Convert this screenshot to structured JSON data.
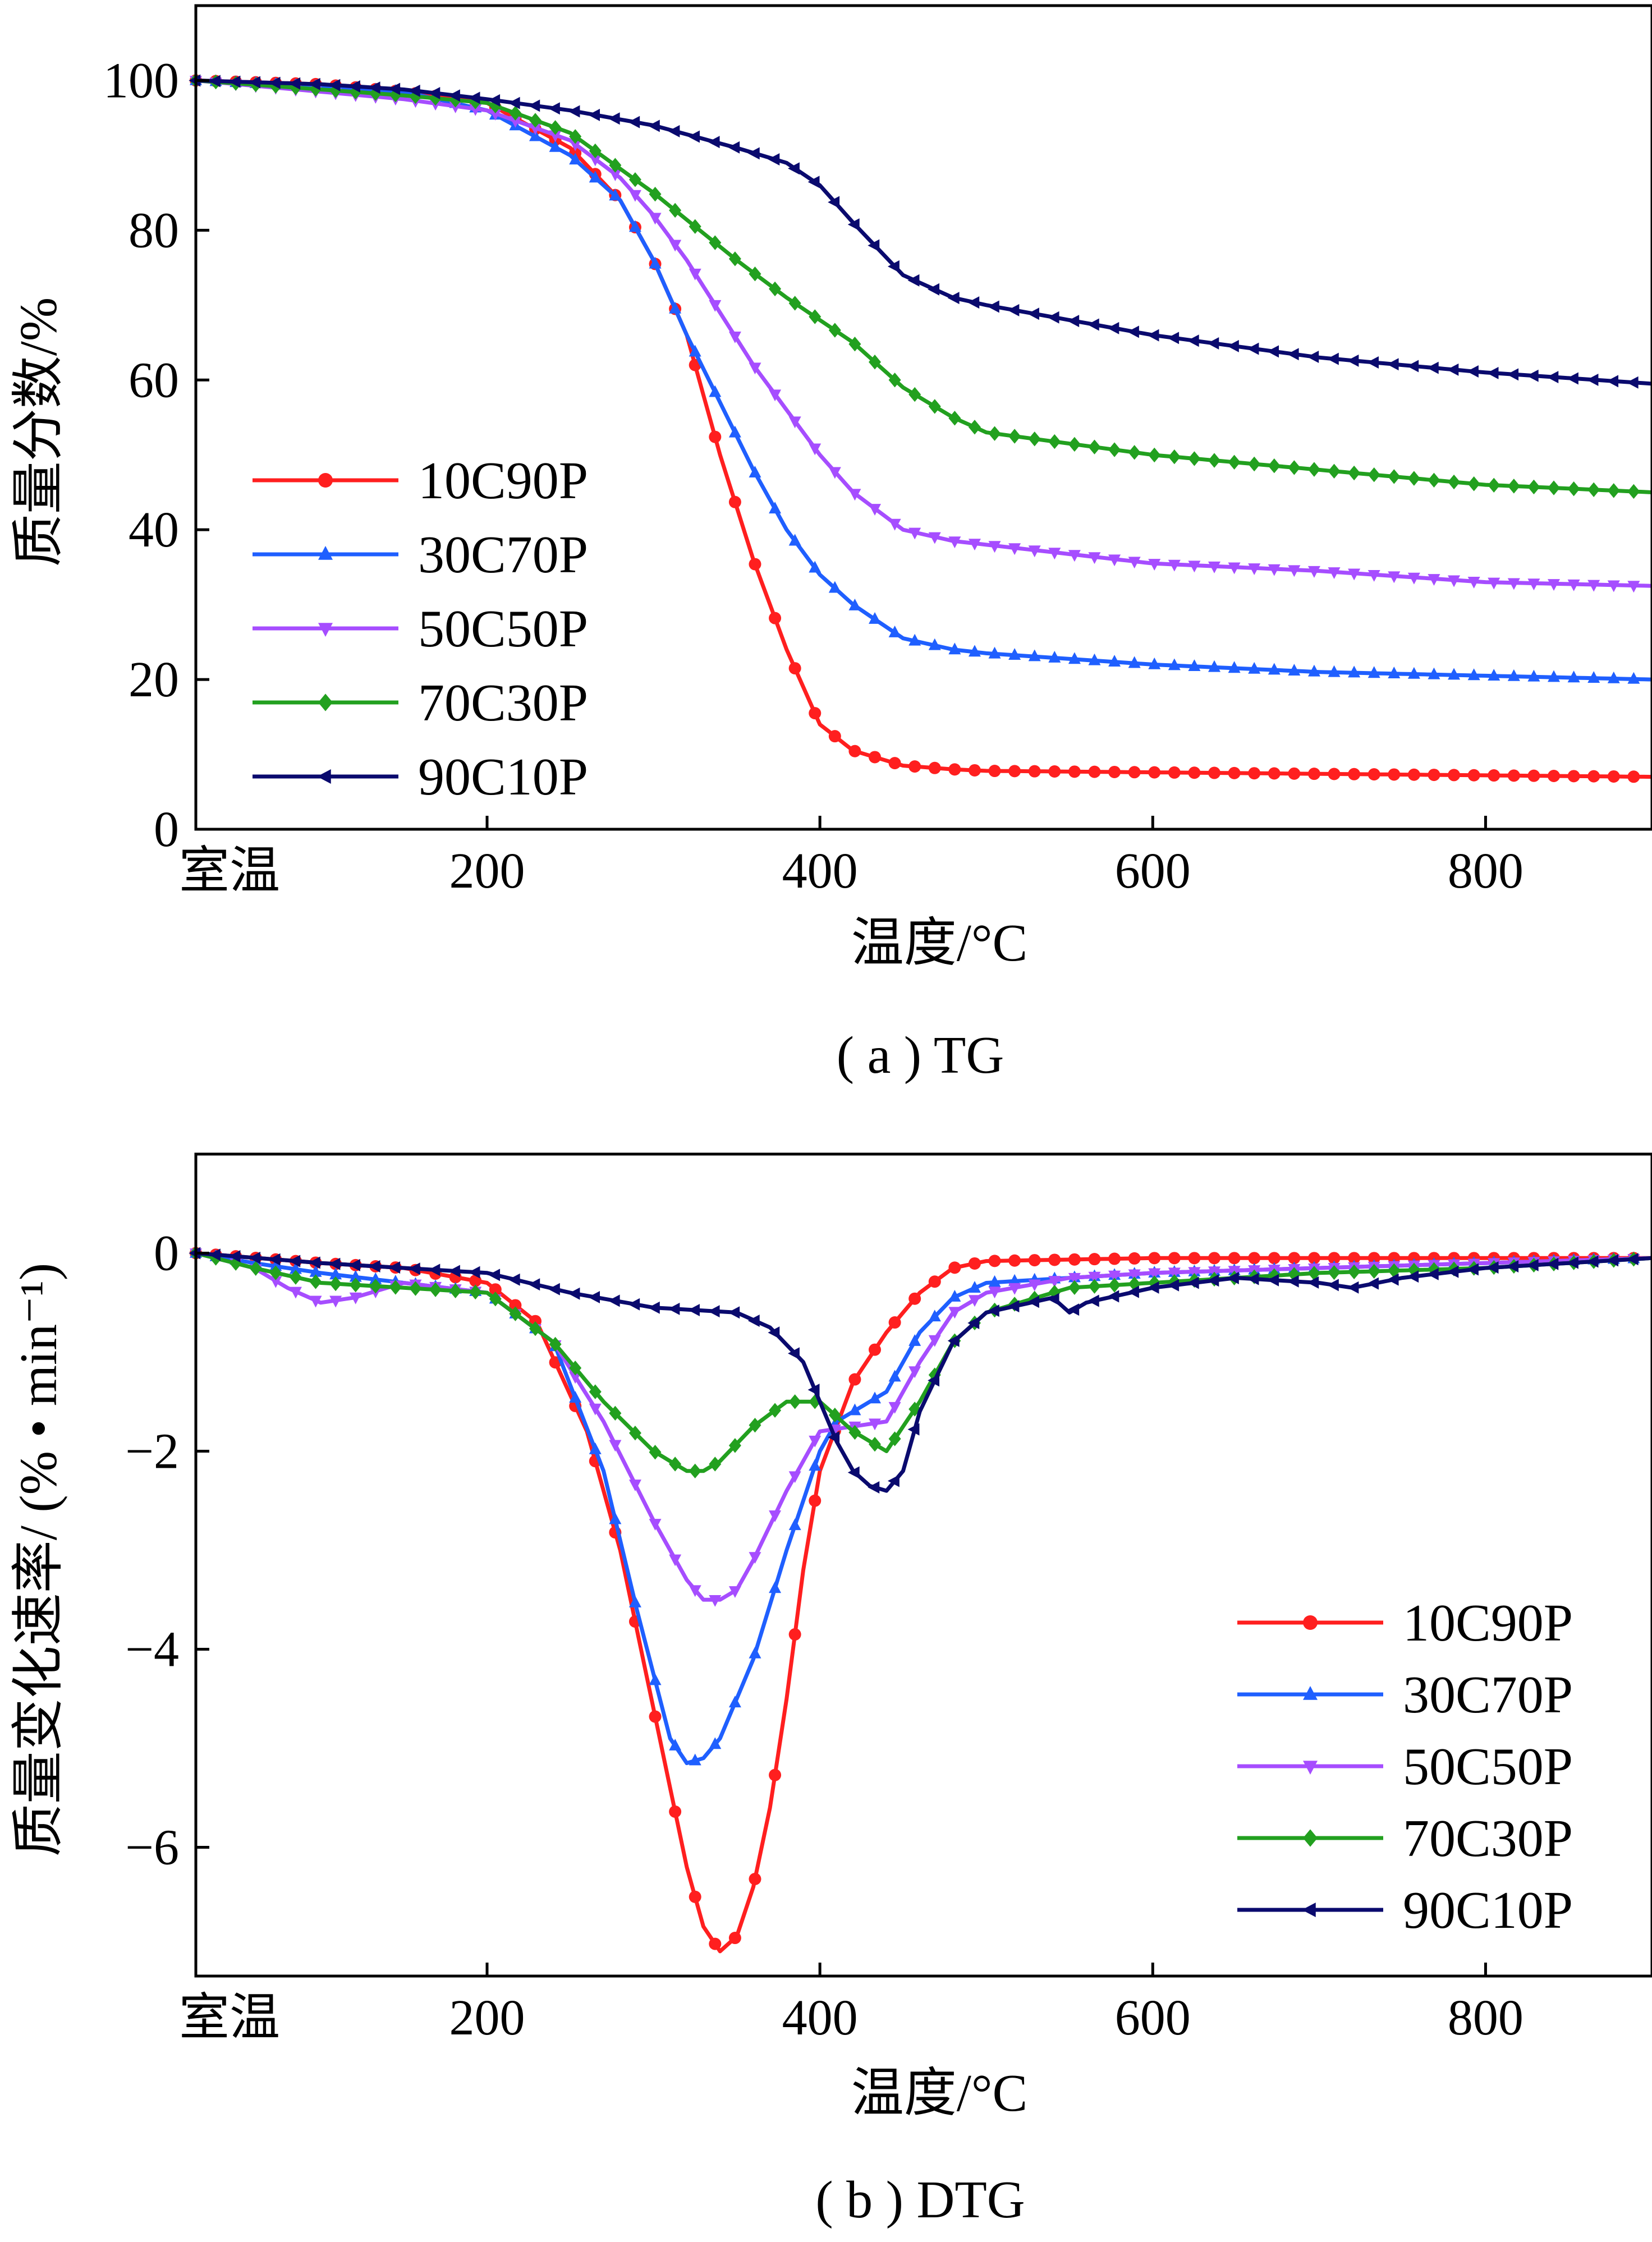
{
  "figure": {
    "caption_a": "( a ) TG",
    "caption_b": "( b ) DTG"
  },
  "colors": {
    "10C90P": "#ff1f1f",
    "30C70P": "#1f5fff",
    "50C50P": "#a64dff",
    "70C30P": "#22a01f",
    "90C10P": "#0a0a6e"
  },
  "markers": {
    "10C90P": "circle",
    "30C70P": "triangle-up",
    "50C50P": "triangle-down",
    "70C30P": "diamond",
    "90C10P": "triangle-left"
  },
  "chart_data": [
    {
      "id": "tg",
      "type": "line",
      "title": "",
      "xlabel": "温度/°C",
      "ylabel": "质量分数/%",
      "xlim": [
        25,
        900
      ],
      "ylim": [
        0,
        110
      ],
      "xticks": [
        25,
        200,
        400,
        600,
        800
      ],
      "xticklabels": [
        "室温",
        "200",
        "400",
        "600",
        "800"
      ],
      "yticks": [
        0,
        20,
        40,
        60,
        80,
        100
      ],
      "yticklabels": [
        "0",
        "20",
        "40",
        "60",
        "80",
        "100"
      ],
      "legend_position": "center-left",
      "grid": false,
      "series": [
        {
          "name": "10C90P",
          "x": [
            25,
            100,
            150,
            200,
            250,
            280,
            300,
            320,
            340,
            360,
            380,
            400,
            420,
            450,
            480,
            500,
            600,
            700,
            800,
            900
          ],
          "y": [
            100,
            99.5,
            98.5,
            97,
            91,
            84,
            76,
            66,
            50,
            36,
            24,
            14,
            10.5,
            8.5,
            8,
            7.8,
            7.6,
            7.4,
            7.2,
            7.0
          ]
        },
        {
          "name": "30C70P",
          "x": [
            25,
            100,
            150,
            200,
            250,
            280,
            300,
            320,
            340,
            360,
            380,
            400,
            420,
            450,
            480,
            500,
            600,
            700,
            800,
            900
          ],
          "y": [
            100,
            99.2,
            98.5,
            96,
            90,
            84,
            76,
            66,
            57,
            48,
            40,
            34,
            30,
            25.5,
            24,
            23.5,
            22,
            21,
            20.5,
            20
          ]
        },
        {
          "name": "50C50P",
          "x": [
            25,
            100,
            150,
            200,
            250,
            280,
            300,
            320,
            340,
            360,
            380,
            400,
            420,
            450,
            480,
            500,
            600,
            700,
            800,
            900
          ],
          "y": [
            100,
            98.5,
            97.5,
            96,
            92,
            87,
            82,
            76,
            69,
            62,
            56,
            50,
            45,
            40,
            38.5,
            38,
            35.5,
            34.5,
            33,
            32.5
          ]
        },
        {
          "name": "70C30P",
          "x": [
            25,
            100,
            150,
            200,
            250,
            300,
            350,
            380,
            400,
            420,
            450,
            480,
            500,
            600,
            700,
            800,
            900
          ],
          "y": [
            100,
            98.8,
            98,
            97,
            93,
            85,
            76,
            71,
            68,
            65,
            59,
            55,
            53,
            50,
            48,
            46,
            45
          ]
        },
        {
          "name": "90C10P",
          "x": [
            25,
            100,
            150,
            200,
            250,
            300,
            350,
            380,
            400,
            420,
            450,
            480,
            500,
            600,
            700,
            800,
            900
          ],
          "y": [
            100,
            99.5,
            98.8,
            97.5,
            96,
            94,
            91,
            89,
            86,
            81,
            74,
            71,
            70,
            66,
            63,
            61,
            59.5
          ]
        }
      ]
    },
    {
      "id": "dtg",
      "type": "line",
      "title": "",
      "xlabel": "温度/°C",
      "ylabel": "质量变化速率/ (% • min⁻¹)",
      "xlim": [
        25,
        900
      ],
      "ylim": [
        -7.3,
        1.0
      ],
      "xticks": [
        25,
        200,
        400,
        600,
        800
      ],
      "xticklabels": [
        "室温",
        "200",
        "400",
        "600",
        "800"
      ],
      "yticks": [
        0,
        -2,
        -4,
        -6
      ],
      "yticklabels": [
        "0",
        "−2",
        "−4",
        "−6"
      ],
      "legend_position": "bottom-right",
      "grid": false,
      "series": [
        {
          "name": "10C90P",
          "x": [
            25,
            100,
            150,
            200,
            230,
            260,
            280,
            300,
            320,
            330,
            340,
            350,
            360,
            370,
            380,
            390,
            400,
            420,
            440,
            460,
            480,
            500,
            600,
            700,
            800,
            900
          ],
          "y": [
            0,
            -0.1,
            -0.15,
            -0.3,
            -0.7,
            -1.8,
            -3,
            -4.6,
            -6.2,
            -6.8,
            -7.05,
            -6.9,
            -6.4,
            -5.6,
            -4.5,
            -3.2,
            -2.2,
            -1.3,
            -0.8,
            -0.4,
            -0.15,
            -0.08,
            -0.05,
            -0.05,
            -0.05,
            -0.05
          ]
        },
        {
          "name": "30C70P",
          "x": [
            25,
            60,
            100,
            150,
            200,
            240,
            270,
            290,
            310,
            320,
            330,
            340,
            360,
            380,
            400,
            410,
            420,
            440,
            460,
            480,
            500,
            600,
            700,
            800,
            900
          ],
          "y": [
            0,
            -0.1,
            -0.2,
            -0.3,
            -0.4,
            -0.9,
            -2.2,
            -3.6,
            -4.9,
            -5.15,
            -5.1,
            -4.9,
            -4.1,
            -3.0,
            -2.0,
            -1.7,
            -1.6,
            -1.4,
            -0.8,
            -0.45,
            -0.3,
            -0.2,
            -0.15,
            -0.1,
            -0.05
          ]
        },
        {
          "name": "50C50P",
          "x": [
            25,
            60,
            80,
            100,
            120,
            150,
            200,
            240,
            270,
            300,
            320,
            330,
            340,
            350,
            360,
            380,
            400,
            420,
            440,
            460,
            480,
            500,
            550,
            600,
            700,
            800,
            900
          ],
          "y": [
            0,
            -0.15,
            -0.35,
            -0.5,
            -0.45,
            -0.3,
            -0.4,
            -0.9,
            -1.7,
            -2.7,
            -3.3,
            -3.5,
            -3.5,
            -3.4,
            -3.1,
            -2.4,
            -1.8,
            -1.75,
            -1.7,
            -1.1,
            -0.6,
            -0.4,
            -0.25,
            -0.2,
            -0.15,
            -0.1,
            -0.05
          ]
        },
        {
          "name": "70C30P",
          "x": [
            25,
            60,
            100,
            150,
            200,
            240,
            270,
            300,
            320,
            330,
            340,
            360,
            380,
            400,
            420,
            440,
            460,
            480,
            500,
            550,
            600,
            700,
            800,
            900
          ],
          "y": [
            0,
            -0.15,
            -0.3,
            -0.35,
            -0.4,
            -0.9,
            -1.5,
            -2.0,
            -2.2,
            -2.2,
            -2.1,
            -1.75,
            -1.5,
            -1.5,
            -1.8,
            -2.0,
            -1.5,
            -0.9,
            -0.6,
            -0.35,
            -0.3,
            -0.2,
            -0.15,
            -0.05
          ]
        },
        {
          "name": "90C10P",
          "x": [
            25,
            100,
            150,
            200,
            250,
            300,
            350,
            370,
            390,
            400,
            410,
            420,
            430,
            440,
            450,
            460,
            480,
            500,
            540,
            550,
            560,
            600,
            650,
            700,
            720,
            750,
            800,
            900
          ],
          "y": [
            0,
            -0.1,
            -0.15,
            -0.2,
            -0.4,
            -0.55,
            -0.6,
            -0.75,
            -1.1,
            -1.5,
            -1.9,
            -2.2,
            -2.35,
            -2.4,
            -2.2,
            -1.6,
            -0.9,
            -0.6,
            -0.45,
            -0.6,
            -0.5,
            -0.35,
            -0.25,
            -0.3,
            -0.35,
            -0.25,
            -0.15,
            -0.05
          ]
        }
      ]
    }
  ]
}
